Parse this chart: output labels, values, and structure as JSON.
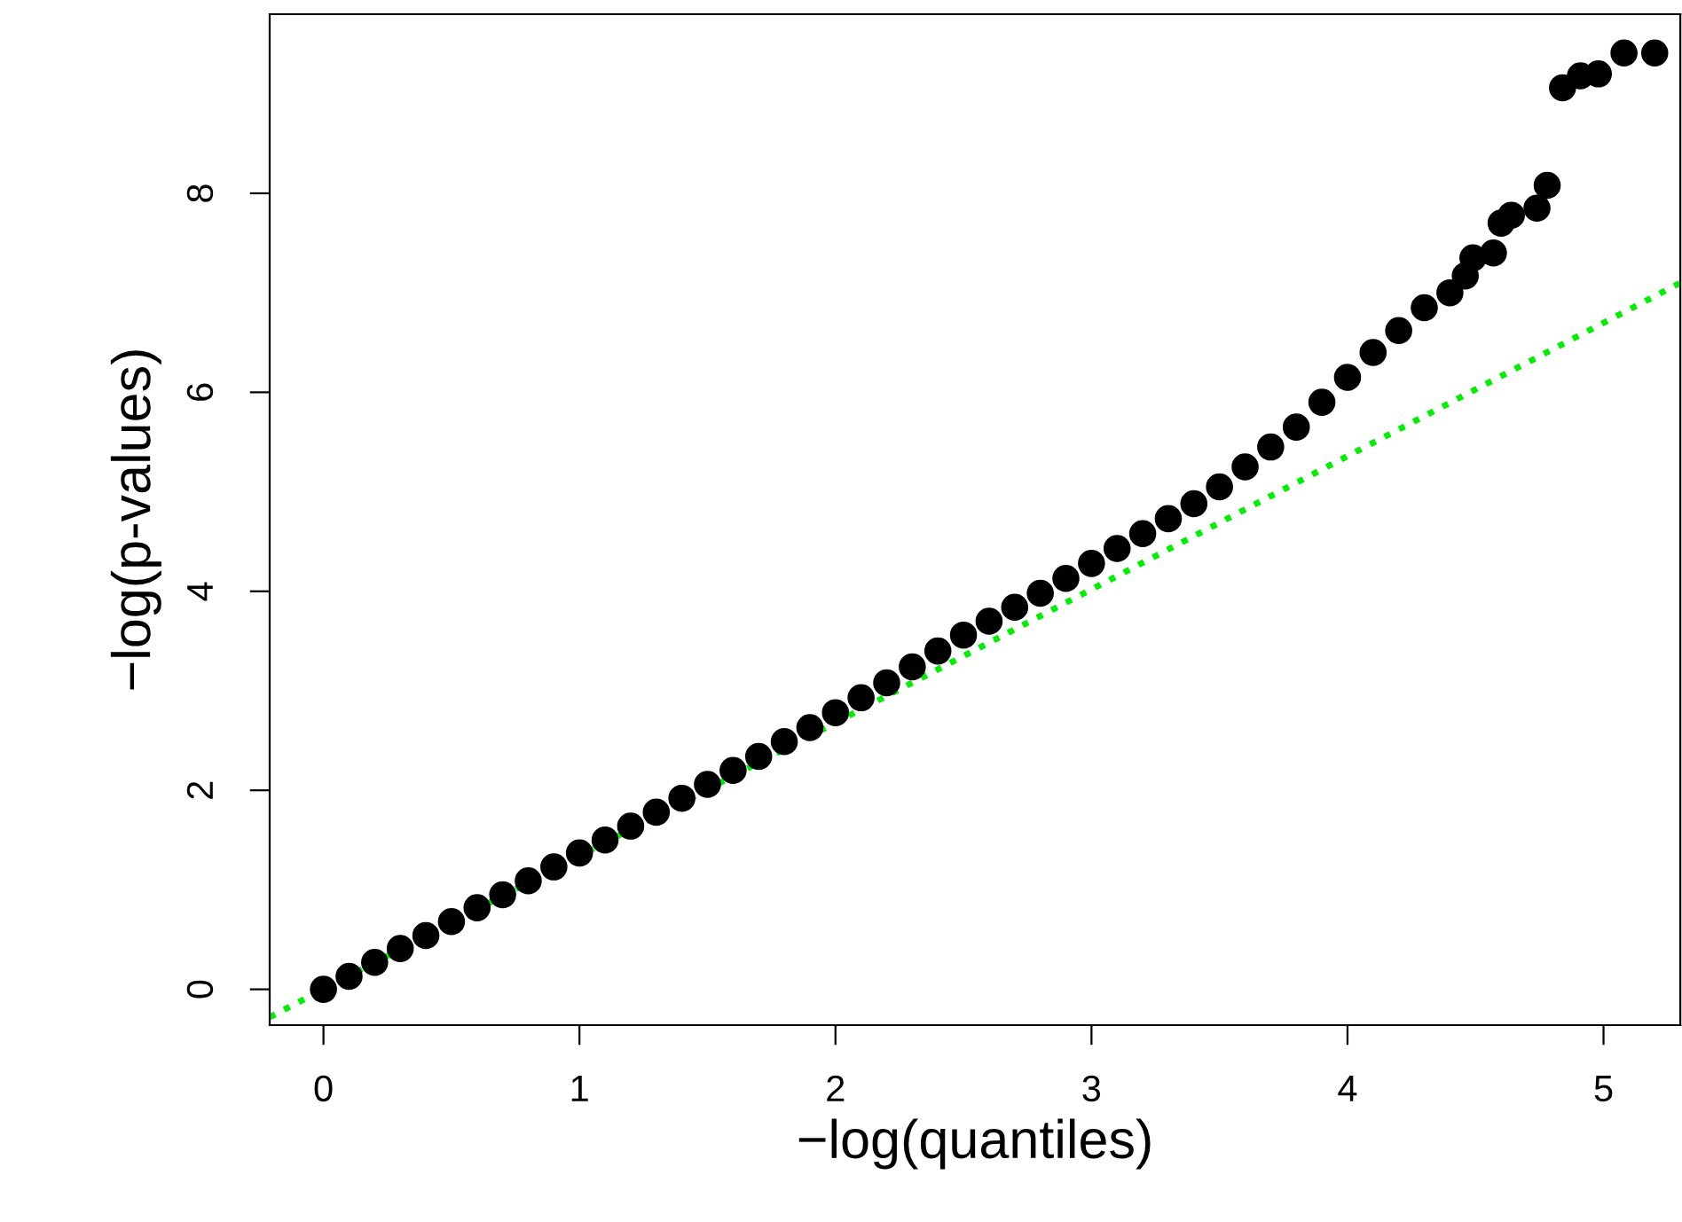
{
  "chart_data": {
    "type": "scatter",
    "xlabel": "−log(quantiles)",
    "ylabel": "−log(p-values)",
    "xlim": [
      -0.21,
      5.3
    ],
    "ylim": [
      -0.36,
      9.8
    ],
    "xticks": [
      0,
      1,
      2,
      3,
      4,
      5
    ],
    "yticks": [
      0,
      2,
      4,
      6,
      8
    ],
    "grid": false,
    "legend": false,
    "series": [
      {
        "marker": "circle",
        "color": "#000000",
        "x": [
          0,
          0.1,
          0.2,
          0.3,
          0.4,
          0.5,
          0.6,
          0.7,
          0.8,
          0.9,
          1.0,
          1.1,
          1.2,
          1.3,
          1.4,
          1.5,
          1.6,
          1.7,
          1.8,
          1.9,
          2.0,
          2.1,
          2.2,
          2.3,
          2.4,
          2.5,
          2.6,
          2.7,
          2.8,
          2.9,
          3.0,
          3.1,
          3.2,
          3.3,
          3.4,
          3.5,
          3.6,
          3.7,
          3.8,
          3.9,
          4.0,
          4.1,
          4.2,
          4.3,
          4.4,
          4.46,
          4.49,
          4.57,
          4.6,
          4.64,
          4.74,
          4.78,
          4.84,
          4.91,
          4.98,
          5.08,
          5.2
        ],
        "values": [
          0,
          0.13,
          0.27,
          0.41,
          0.54,
          0.68,
          0.82,
          0.95,
          1.09,
          1.23,
          1.37,
          1.5,
          1.64,
          1.78,
          1.92,
          2.06,
          2.2,
          2.34,
          2.49,
          2.63,
          2.78,
          2.93,
          3.08,
          3.24,
          3.4,
          3.56,
          3.7,
          3.84,
          3.98,
          4.13,
          4.28,
          4.43,
          4.58,
          4.73,
          4.88,
          5.05,
          5.25,
          5.45,
          5.65,
          5.9,
          6.15,
          6.4,
          6.62,
          6.85,
          7.0,
          7.17,
          7.35,
          7.4,
          7.7,
          7.78,
          7.85,
          8.08,
          9.06,
          9.18,
          9.2,
          9.41,
          9.41
        ]
      },
      {
        "type": "line",
        "color": "#00ee00",
        "line_style": "dotted",
        "x": [
          -0.21,
          5.3
        ],
        "values": [
          -0.28,
          7.1
        ]
      }
    ]
  }
}
